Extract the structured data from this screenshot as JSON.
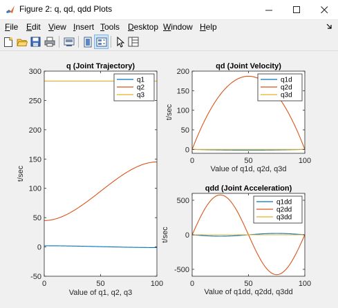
{
  "window": {
    "title": "Figure 2: q, qd, qdd Plots",
    "minimize_icon": "minimize-icon",
    "maximize_icon": "maximize-icon",
    "close_icon": "close-icon"
  },
  "menu": {
    "items": [
      {
        "label": "File",
        "accel": "F",
        "rest": "ile"
      },
      {
        "label": "Edit",
        "accel": "E",
        "rest": "dit"
      },
      {
        "label": "View",
        "accel": "V",
        "rest": "iew"
      },
      {
        "label": "Insert",
        "accel": "I",
        "rest": "nsert"
      },
      {
        "label": "Tools",
        "accel": "T",
        "rest": "ools"
      },
      {
        "label": "Desktop",
        "accel": "D",
        "rest": "esktop"
      },
      {
        "label": "Window",
        "accel": "W",
        "rest": "indow"
      },
      {
        "label": "Help",
        "accel": "H",
        "rest": "elp"
      }
    ],
    "dock_icon": "dock-arrow-icon"
  },
  "toolbar": {
    "icons": [
      "new-figure-icon",
      "open-file-icon",
      "save-icon",
      "print-icon",
      "link-plot-icon",
      "hide-plot-tools-icon",
      "show-plot-tools-icon",
      "edit-plot-icon",
      "open-property-inspector-icon"
    ]
  },
  "colors": {
    "q1": "#0072BD",
    "q2": "#D95319",
    "q3": "#EDB120"
  },
  "chart_data": [
    {
      "type": "line",
      "title": "q (Joint Trajectory)",
      "xlabel": "Value of q1, q2, q3",
      "ylabel": "t/sec",
      "xlim": [
        0,
        100
      ],
      "ylim": [
        -50,
        300
      ],
      "xticks": [
        0,
        50,
        100
      ],
      "yticks": [
        -50,
        0,
        50,
        100,
        150,
        200,
        250,
        300
      ],
      "legend": [
        "q1",
        "q2",
        "q3"
      ],
      "legend_position": "top-right",
      "series": [
        {
          "name": "q1",
          "kind": "cubic",
          "start": 2,
          "end": -1
        },
        {
          "name": "q2",
          "kind": "cubic",
          "start": 45,
          "end": 145
        },
        {
          "name": "q3",
          "kind": "cubic",
          "start": 283,
          "end": 283
        }
      ]
    },
    {
      "type": "line",
      "title": "qd (Joint Velocity)",
      "xlabel": "Value of q1d, q2d, q3d",
      "ylabel": "t/sec",
      "xlim": [
        0,
        100
      ],
      "ylim": [
        -10,
        200
      ],
      "xticks": [
        0,
        50,
        100
      ],
      "yticks": [
        0,
        50,
        100,
        150,
        200
      ],
      "legend": [
        "q1d",
        "q2d",
        "q3d"
      ],
      "legend_position": "top-right",
      "series": [
        {
          "name": "q1d",
          "kind": "parabola",
          "peak": -1.8
        },
        {
          "name": "q2d",
          "kind": "parabola",
          "peak": 187
        },
        {
          "name": "q3d",
          "kind": "parabola",
          "peak": 0
        }
      ]
    },
    {
      "type": "line",
      "title": "qdd (Joint Acceleration)",
      "xlabel": "Value of q1dd, q2dd, q3dd",
      "ylabel": "t/sec",
      "xlim": [
        0,
        100
      ],
      "ylim": [
        -600,
        600
      ],
      "xticks": [
        0,
        50,
        100
      ],
      "yticks": [
        -500,
        0,
        500
      ],
      "legend": [
        "q1dd",
        "q2dd",
        "q3dd"
      ],
      "legend_position": "top-right",
      "series": [
        {
          "name": "q1dd",
          "kind": "sine",
          "amplitude": -20
        },
        {
          "name": "q2dd",
          "kind": "sine",
          "amplitude": 577
        },
        {
          "name": "q3dd",
          "kind": "sine",
          "amplitude": 0
        }
      ]
    }
  ]
}
